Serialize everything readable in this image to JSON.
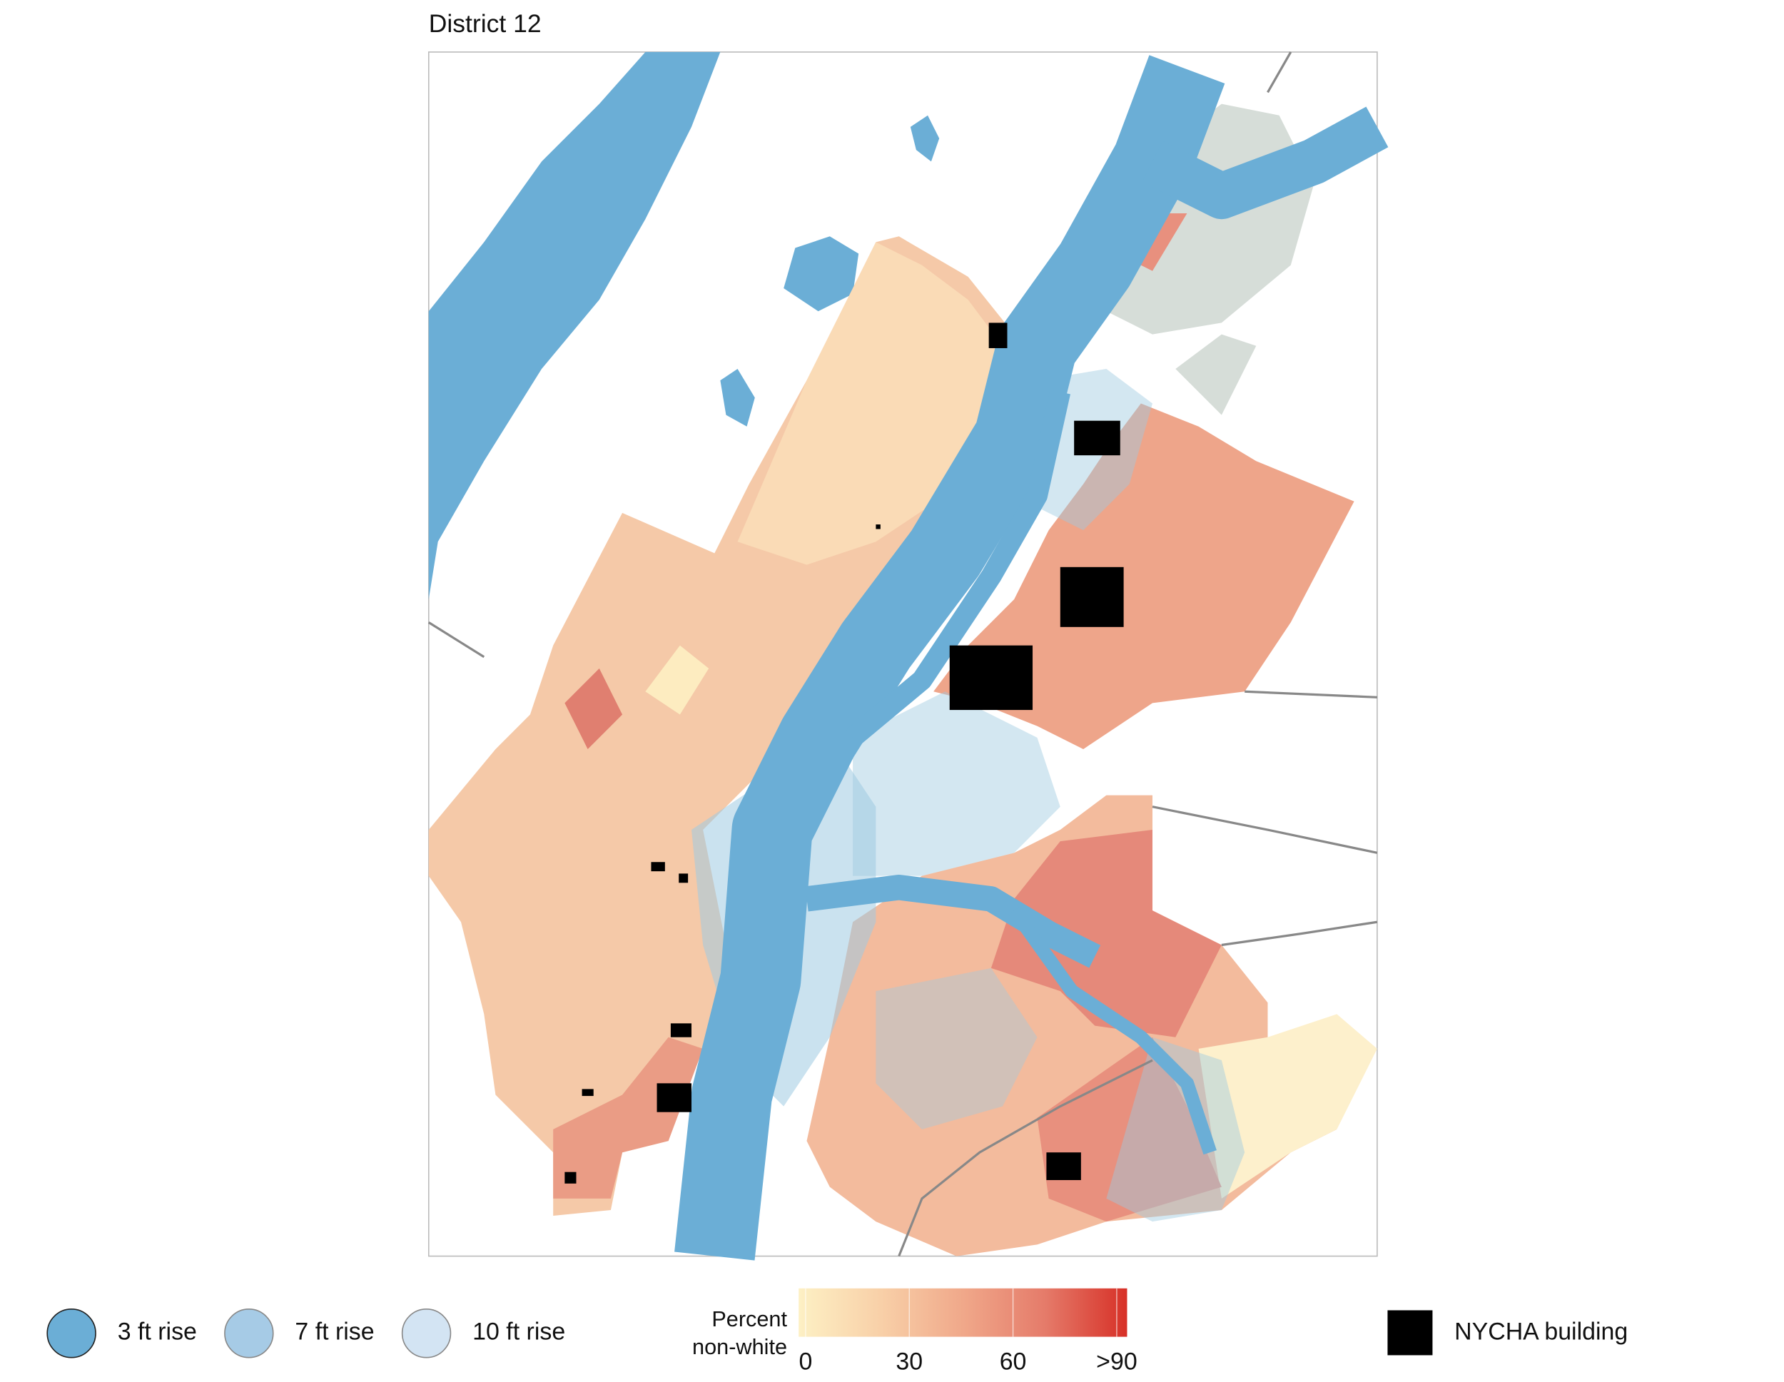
{
  "title": "District 12",
  "flood_legend": [
    {
      "label": "3 ft rise",
      "color": "#6baed6"
    },
    {
      "label": "7 ft rise",
      "color": "#a6cbe6"
    },
    {
      "label": "10 ft rise",
      "color": "#d3e4f3"
    }
  ],
  "colorbar": {
    "label": [
      "Percent",
      "non-white"
    ],
    "lim": [
      -2,
      93
    ],
    "ticks": [
      0,
      30,
      60,
      {
        "value": 90,
        "label": ">90"
      }
    ],
    "colors": [
      "#fdf0c4",
      "#f8d0a8",
      "#f0a88a",
      "#e57b6a",
      "#d73027"
    ]
  },
  "nycha_legend": {
    "label": "NYCHA building",
    "color": "#000000"
  }
}
